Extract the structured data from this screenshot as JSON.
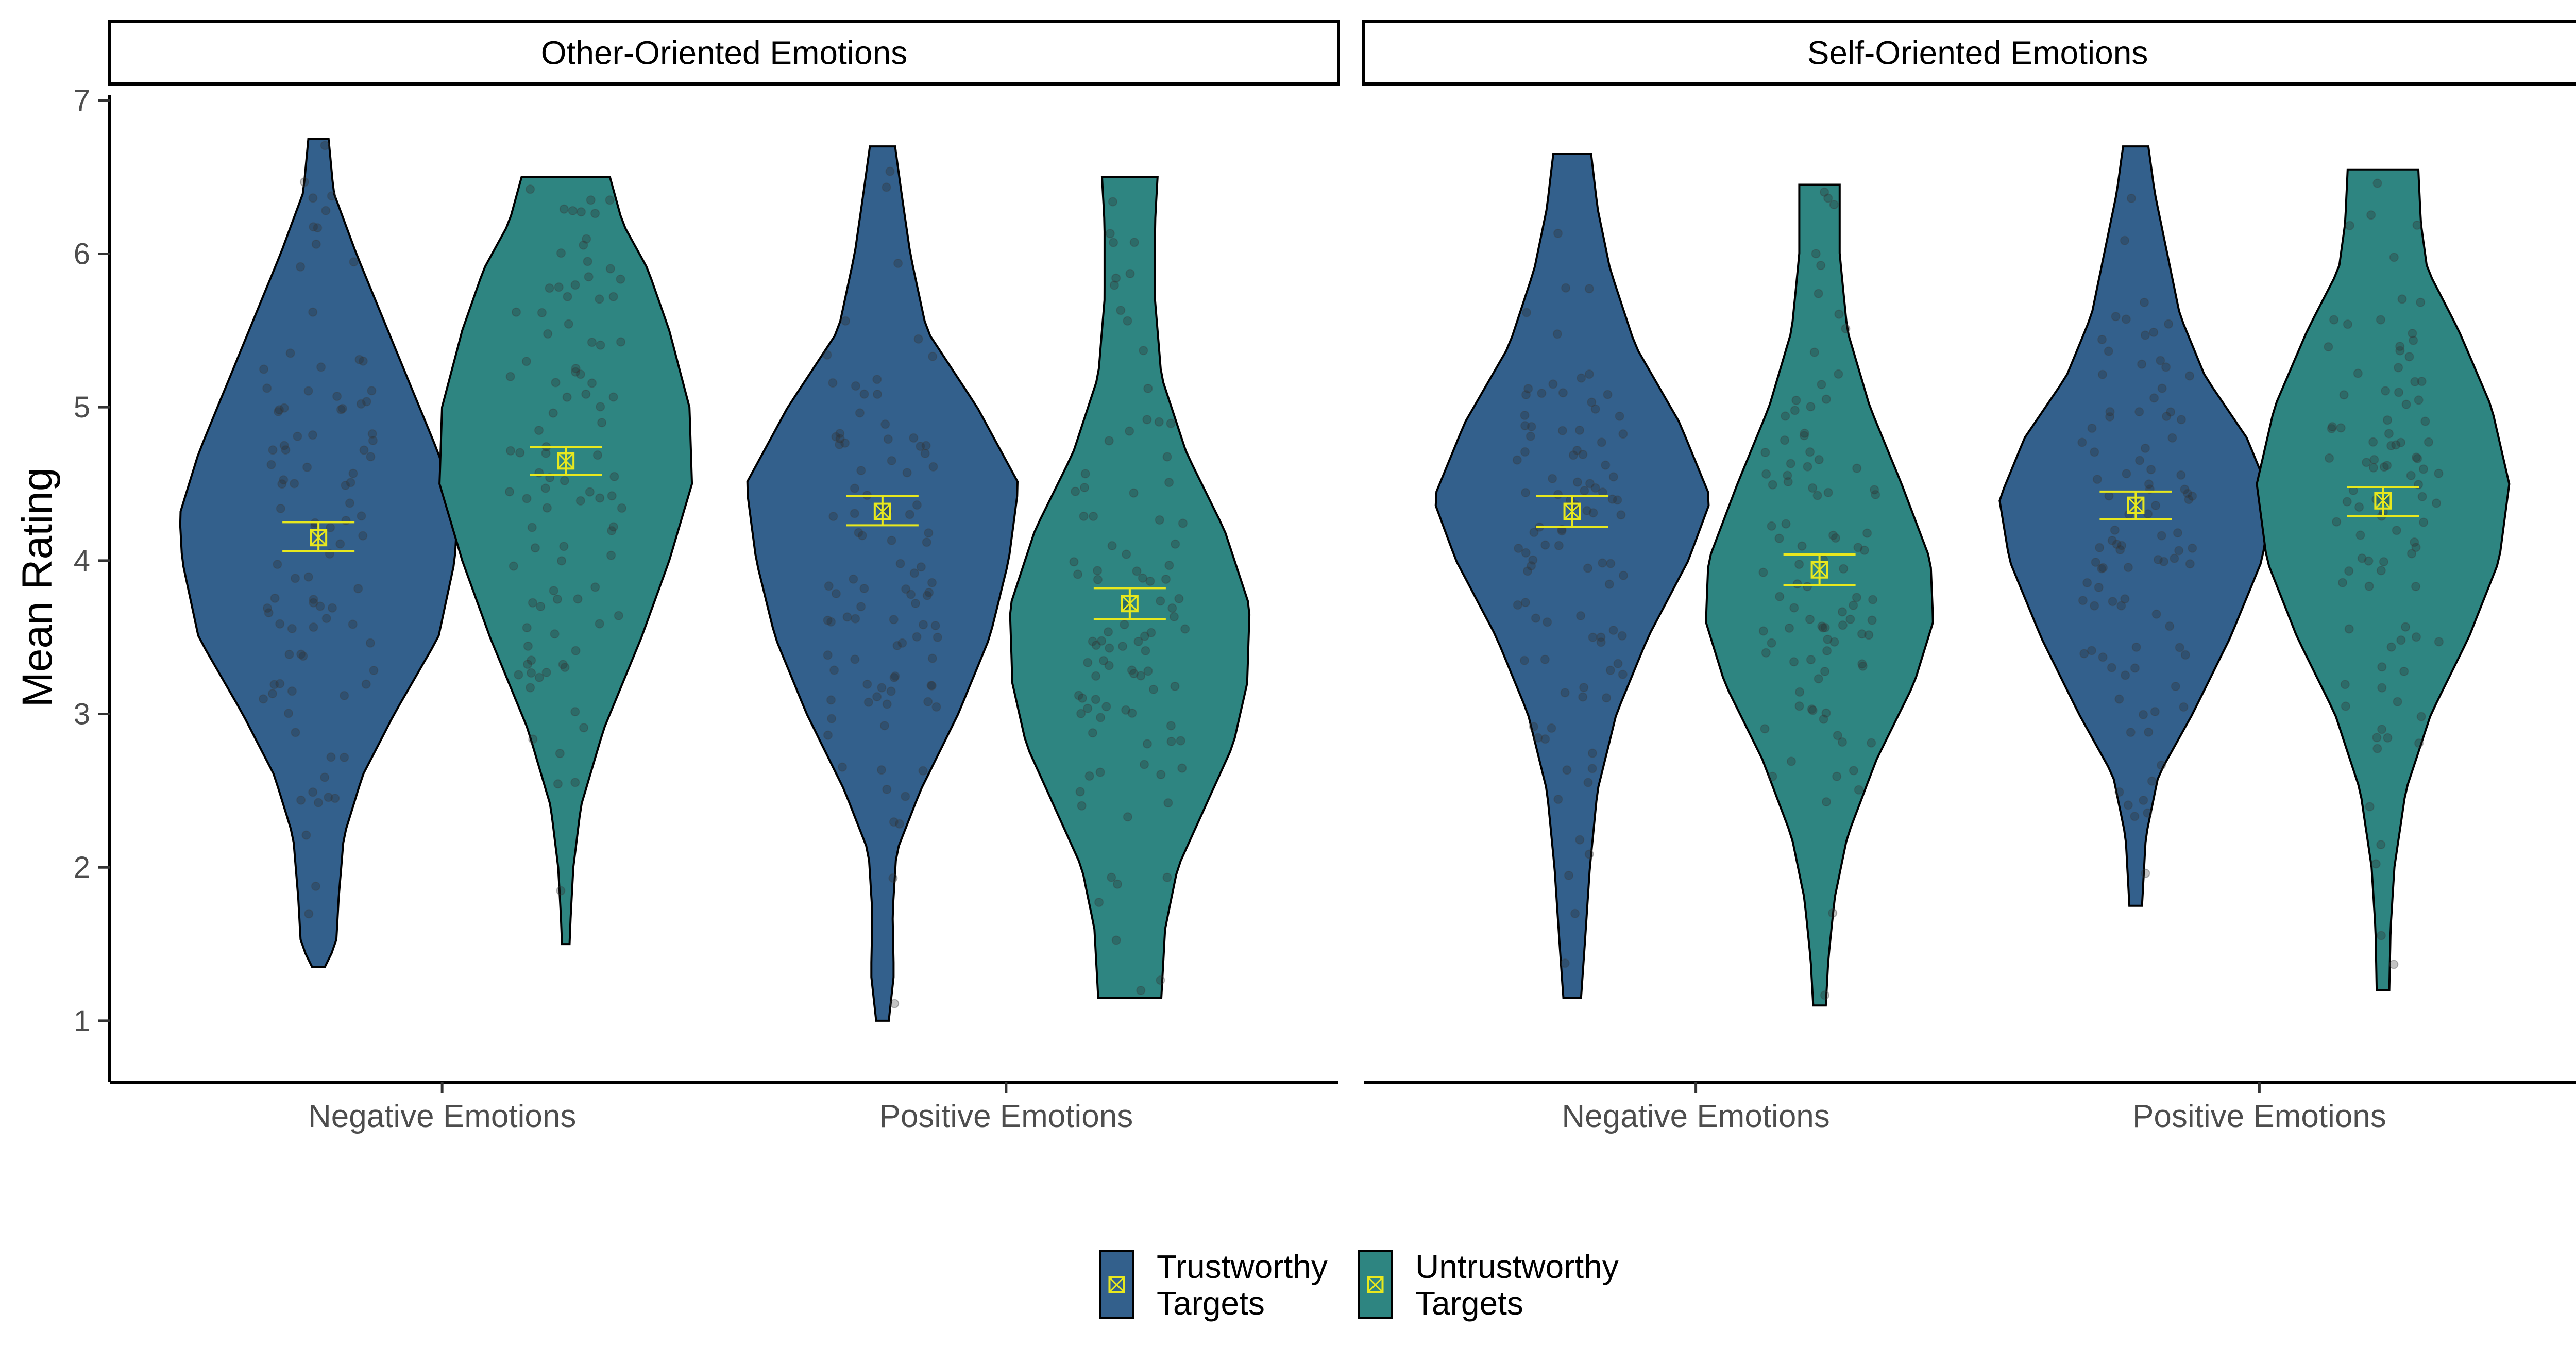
{
  "chart_data": {
    "type": "violin",
    "ylabel": "Mean Rating",
    "ylim": [
      0.6,
      7.1
    ],
    "yticks": [
      1,
      2,
      3,
      4,
      5,
      6,
      7
    ],
    "categories": [
      "Negative Emotions",
      "Positive Emotions"
    ],
    "legend": {
      "placement": "bottom",
      "items": [
        {
          "label_line1": "Trustworthy",
          "label_line2": "Targets",
          "color": "#33608C"
        },
        {
          "label_line1": "Untrustworthy",
          "label_line2": "Targets",
          "color": "#2E8581"
        }
      ]
    },
    "marker_color": "#E8E81E",
    "panels": [
      {
        "title": "Other-Oriented Emotions",
        "groups": [
          {
            "category": "Negative Emotions",
            "series": "Trustworthy Targets",
            "min": 1.35,
            "max": 6.75,
            "mean": 4.15,
            "ci": [
              4.06,
              4.25
            ],
            "profile": [
              [
                1.35,
                0.05
              ],
              [
                1.5,
                0.14
              ],
              [
                1.8,
                0.16
              ],
              [
                2.2,
                0.2
              ],
              [
                2.6,
                0.35
              ],
              [
                3.0,
                0.6
              ],
              [
                3.5,
                0.95
              ],
              [
                4.0,
                1.08
              ],
              [
                4.3,
                1.1
              ],
              [
                4.7,
                0.95
              ],
              [
                5.2,
                0.7
              ],
              [
                5.6,
                0.5
              ],
              [
                6.0,
                0.3
              ],
              [
                6.4,
                0.12
              ],
              [
                6.75,
                0.08
              ]
            ]
          },
          {
            "category": "Negative Emotions",
            "series": "Untrustworthy Targets",
            "min": 1.5,
            "max": 6.5,
            "mean": 4.65,
            "ci": [
              4.56,
              4.74
            ],
            "profile": [
              [
                1.5,
                0.03
              ],
              [
                1.7,
                0.04
              ],
              [
                2.0,
                0.06
              ],
              [
                2.4,
                0.12
              ],
              [
                2.9,
                0.3
              ],
              [
                3.5,
                0.6
              ],
              [
                4.0,
                0.82
              ],
              [
                4.5,
                1.0
              ],
              [
                5.0,
                0.98
              ],
              [
                5.5,
                0.82
              ],
              [
                5.9,
                0.65
              ],
              [
                6.2,
                0.45
              ],
              [
                6.5,
                0.35
              ]
            ]
          },
          {
            "category": "Positive Emotions",
            "series": "Trustworthy Targets",
            "min": 1.0,
            "max": 6.7,
            "mean": 4.32,
            "ci": [
              4.23,
              4.42
            ],
            "profile": [
              [
                1.0,
                0.05
              ],
              [
                1.3,
                0.09
              ],
              [
                1.7,
                0.08
              ],
              [
                2.1,
                0.11
              ],
              [
                2.5,
                0.3
              ],
              [
                3.0,
                0.6
              ],
              [
                3.5,
                0.85
              ],
              [
                4.0,
                1.0
              ],
              [
                4.5,
                1.08
              ],
              [
                5.0,
                0.75
              ],
              [
                5.5,
                0.35
              ],
              [
                6.0,
                0.22
              ],
              [
                6.4,
                0.15
              ],
              [
                6.7,
                0.1
              ]
            ]
          },
          {
            "category": "Positive Emotions",
            "series": "Untrustworthy Targets",
            "min": 1.15,
            "max": 6.5,
            "mean": 3.72,
            "ci": [
              3.62,
              3.82
            ],
            "profile": [
              [
                1.15,
                0.25
              ],
              [
                1.6,
                0.28
              ],
              [
                2.0,
                0.38
              ],
              [
                2.4,
                0.6
              ],
              [
                2.8,
                0.82
              ],
              [
                3.2,
                0.93
              ],
              [
                3.7,
                0.95
              ],
              [
                4.2,
                0.75
              ],
              [
                4.7,
                0.45
              ],
              [
                5.2,
                0.25
              ],
              [
                5.7,
                0.2
              ],
              [
                6.2,
                0.2
              ],
              [
                6.5,
                0.22
              ]
            ]
          }
        ]
      },
      {
        "title": "Self-Oriented Emotions",
        "groups": [
          {
            "category": "Negative Emotions",
            "series": "Trustworthy Targets",
            "min": 1.15,
            "max": 6.65,
            "mean": 4.32,
            "ci": [
              4.22,
              4.42
            ],
            "profile": [
              [
                1.15,
                0.07
              ],
              [
                1.5,
                0.1
              ],
              [
                2.0,
                0.14
              ],
              [
                2.5,
                0.2
              ],
              [
                3.0,
                0.35
              ],
              [
                3.5,
                0.6
              ],
              [
                4.0,
                0.92
              ],
              [
                4.4,
                1.1
              ],
              [
                4.9,
                0.85
              ],
              [
                5.4,
                0.5
              ],
              [
                5.9,
                0.3
              ],
              [
                6.3,
                0.2
              ],
              [
                6.65,
                0.15
              ]
            ]
          },
          {
            "category": "Negative Emotions",
            "series": "Untrustworthy Targets",
            "min": 1.1,
            "max": 6.45,
            "mean": 3.94,
            "ci": [
              3.84,
              4.04
            ],
            "profile": [
              [
                1.1,
                0.05
              ],
              [
                1.4,
                0.07
              ],
              [
                1.8,
                0.12
              ],
              [
                2.2,
                0.22
              ],
              [
                2.7,
                0.45
              ],
              [
                3.2,
                0.75
              ],
              [
                3.6,
                0.9
              ],
              [
                4.0,
                0.88
              ],
              [
                4.5,
                0.65
              ],
              [
                5.0,
                0.4
              ],
              [
                5.5,
                0.22
              ],
              [
                6.0,
                0.16
              ],
              [
                6.45,
                0.16
              ]
            ]
          },
          {
            "category": "Positive Emotions",
            "series": "Trustworthy Targets",
            "min": 1.75,
            "max": 6.7,
            "mean": 4.36,
            "ci": [
              4.27,
              4.45
            ],
            "profile": [
              [
                1.75,
                0.05
              ],
              [
                2.2,
                0.08
              ],
              [
                2.6,
                0.18
              ],
              [
                3.0,
                0.45
              ],
              [
                3.5,
                0.75
              ],
              [
                4.0,
                1.0
              ],
              [
                4.4,
                1.08
              ],
              [
                4.8,
                0.88
              ],
              [
                5.2,
                0.55
              ],
              [
                5.6,
                0.35
              ],
              [
                6.0,
                0.25
              ],
              [
                6.4,
                0.15
              ],
              [
                6.7,
                0.1
              ]
            ]
          },
          {
            "category": "Positive Emotions",
            "series": "Untrustworthy Targets",
            "min": 1.2,
            "max": 6.55,
            "mean": 4.39,
            "ci": [
              4.29,
              4.48
            ],
            "profile": [
              [
                1.2,
                0.05
              ],
              [
                1.6,
                0.06
              ],
              [
                2.0,
                0.09
              ],
              [
                2.5,
                0.18
              ],
              [
                3.0,
                0.38
              ],
              [
                3.5,
                0.68
              ],
              [
                4.0,
                0.92
              ],
              [
                4.5,
                1.0
              ],
              [
                5.0,
                0.86
              ],
              [
                5.5,
                0.6
              ],
              [
                5.9,
                0.35
              ],
              [
                6.2,
                0.3
              ],
              [
                6.55,
                0.28
              ]
            ]
          }
        ]
      }
    ]
  }
}
